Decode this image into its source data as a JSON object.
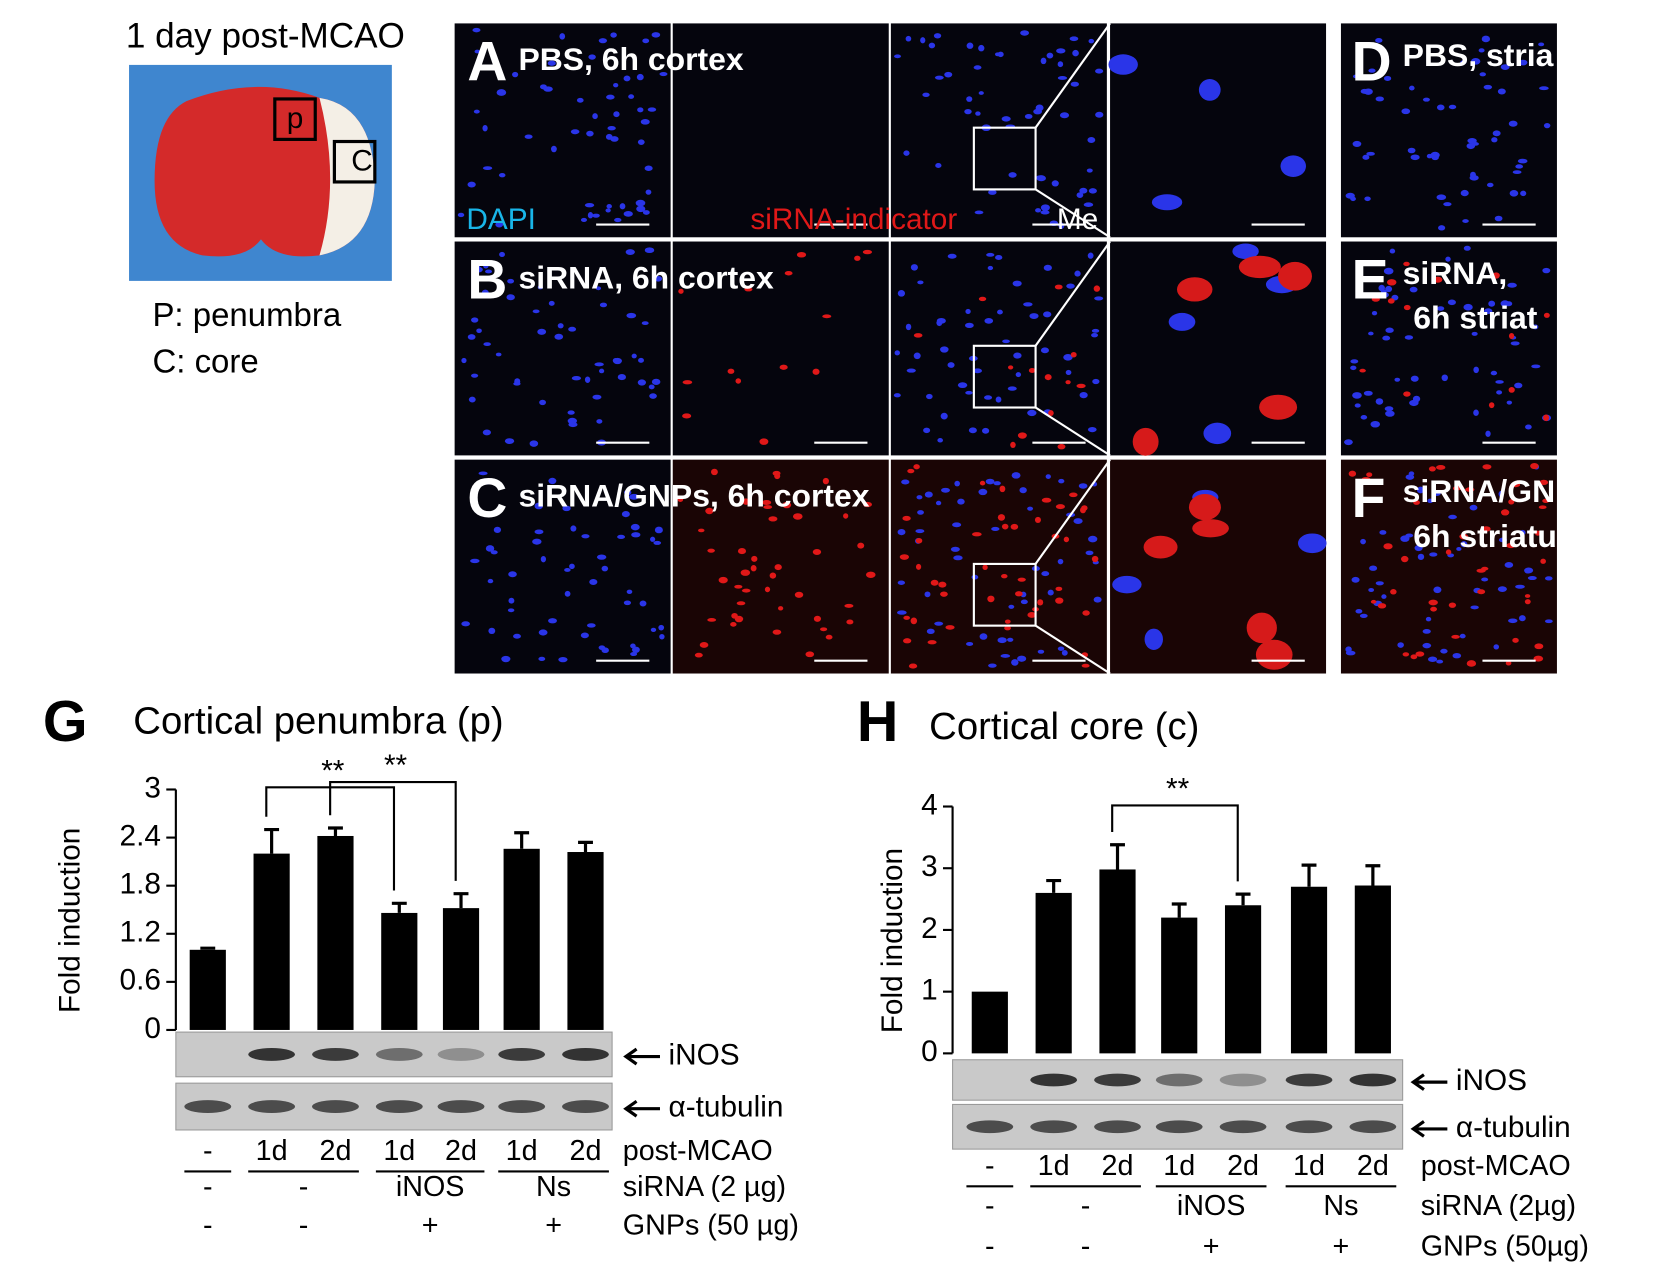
{
  "brain": {
    "title": "1 day post-MCAO",
    "box_labels": [
      "p",
      "C"
    ],
    "legend": [
      "P: penumbra",
      "C: core"
    ]
  },
  "micrographs": {
    "channels": [
      "DAPI",
      "siRNA-indicator",
      "Me"
    ],
    "rows": [
      {
        "letter": "A",
        "label": "PBS, 6h cortex",
        "striatum_letter": "D",
        "striatum_label": [
          "PBS, stria"
        ]
      },
      {
        "letter": "B",
        "label": "siRNA, 6h cortex",
        "striatum_letter": "E",
        "striatum_label": [
          "siRNA,",
          "6h striat"
        ]
      },
      {
        "letter": "C",
        "label": "siRNA/GNPs, 6h cortex",
        "striatum_letter": "F",
        "striatum_label": [
          "siRNA/GN",
          "6h striatu"
        ]
      }
    ]
  },
  "chart_data": [
    {
      "type": "bar",
      "letter": "G",
      "title": "Cortical penumbra (p)",
      "y_label": "Fold induction",
      "color": "#000000",
      "categories": [
        "-",
        "1d",
        "2d",
        "1d",
        "2d",
        "1d",
        "2d"
      ],
      "x_label": "post-MCAO",
      "values": [
        1.0,
        2.2,
        2.42,
        1.46,
        1.52,
        2.26,
        2.22
      ],
      "errors": [
        0.02,
        0.3,
        0.1,
        0.12,
        0.18,
        0.2,
        0.12
      ],
      "ylim": [
        0,
        3
      ],
      "yticks": [
        0,
        0.6,
        1.2,
        1.8,
        2.4,
        3
      ],
      "significance": [
        "**",
        "**"
      ],
      "blots": [
        "iNOS",
        "α-tubulin"
      ],
      "conditions": [
        {
          "name": "siRNA (2 µg)",
          "labels": [
            "-",
            "-",
            "iNOS",
            "Ns"
          ]
        },
        {
          "name": "GNPs (50 µg)",
          "labels": [
            "-",
            "-",
            "+",
            "+"
          ]
        }
      ]
    },
    {
      "type": "bar",
      "letter": "H",
      "title": "Cortical core (c)",
      "y_label": "Fold induction",
      "color": "#000000",
      "categories": [
        "-",
        "1d",
        "2d",
        "1d",
        "2d",
        "1d",
        "2d"
      ],
      "x_label": "post-MCAO",
      "values": [
        1.0,
        2.6,
        2.98,
        2.2,
        2.4,
        2.7,
        2.72
      ],
      "errors": [
        0,
        0.2,
        0.4,
        0.22,
        0.18,
        0.35,
        0.32
      ],
      "ylim": [
        0,
        4
      ],
      "yticks": [
        0,
        1,
        2,
        3,
        4
      ],
      "significance": [
        "**"
      ],
      "blots": [
        "iNOS",
        "α-tubulin"
      ],
      "conditions": [
        {
          "name": "siRNA (2µg)",
          "labels": [
            "-",
            "-",
            "iNOS",
            "Ns"
          ]
        },
        {
          "name": "GNPs (50µg)",
          "labels": [
            "-",
            "-",
            "+",
            "+"
          ]
        }
      ]
    }
  ]
}
